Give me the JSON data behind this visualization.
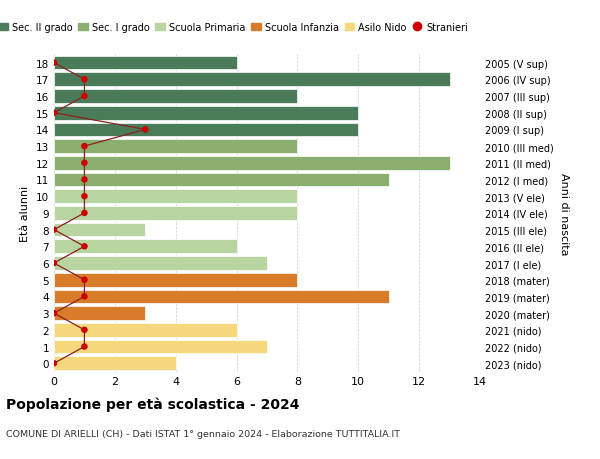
{
  "ages": [
    18,
    17,
    16,
    15,
    14,
    13,
    12,
    11,
    10,
    9,
    8,
    7,
    6,
    5,
    4,
    3,
    2,
    1,
    0
  ],
  "years_by_age": {
    "18": "2005 (V sup)",
    "17": "2006 (IV sup)",
    "16": "2007 (III sup)",
    "15": "2008 (II sup)",
    "14": "2009 (I sup)",
    "13": "2010 (III med)",
    "12": "2011 (II med)",
    "11": "2012 (I med)",
    "10": "2013 (V ele)",
    "9": "2014 (IV ele)",
    "8": "2015 (III ele)",
    "7": "2016 (II ele)",
    "6": "2017 (I ele)",
    "5": "2018 (mater)",
    "4": "2019 (mater)",
    "3": "2020 (mater)",
    "2": "2021 (nido)",
    "1": "2022 (nido)",
    "0": "2023 (nido)"
  },
  "bar_values": [
    6,
    13,
    8,
    10,
    10,
    8,
    13,
    11,
    8,
    8,
    3,
    6,
    7,
    8,
    11,
    3,
    6,
    7,
    4
  ],
  "bar_colors": [
    "#4a7c59",
    "#4a7c59",
    "#4a7c59",
    "#4a7c59",
    "#4a7c59",
    "#8aaf6e",
    "#8aaf6e",
    "#8aaf6e",
    "#b8d4a0",
    "#b8d4a0",
    "#b8d4a0",
    "#b8d4a0",
    "#b8d4a0",
    "#d97c2a",
    "#d97c2a",
    "#d97c2a",
    "#f5d87c",
    "#f5d87c",
    "#f5d87c"
  ],
  "stranieri_values": [
    0,
    1,
    1,
    0,
    3,
    1,
    1,
    1,
    1,
    1,
    0,
    1,
    0,
    1,
    1,
    0,
    1,
    1,
    0
  ],
  "legend_labels": [
    "Sec. II grado",
    "Sec. I grado",
    "Scuola Primaria",
    "Scuola Infanzia",
    "Asilo Nido",
    "Stranieri"
  ],
  "legend_colors": [
    "#4a7c59",
    "#8aaf6e",
    "#b8d4a0",
    "#d97c2a",
    "#f5d87c",
    "#cc0000"
  ],
  "title": "Popolazione per età scolastica - 2024",
  "subtitle": "COMUNE DI ARIELLI (CH) - Dati ISTAT 1° gennaio 2024 - Elaborazione TUTTITALIA.IT",
  "ylabel_left": "Età alunni",
  "ylabel_right": "Anni di nascita",
  "xlim": [
    0,
    14
  ],
  "background_color": "#ffffff",
  "grid_color": "#cccccc",
  "stranieri_line_color": "#8b2020"
}
